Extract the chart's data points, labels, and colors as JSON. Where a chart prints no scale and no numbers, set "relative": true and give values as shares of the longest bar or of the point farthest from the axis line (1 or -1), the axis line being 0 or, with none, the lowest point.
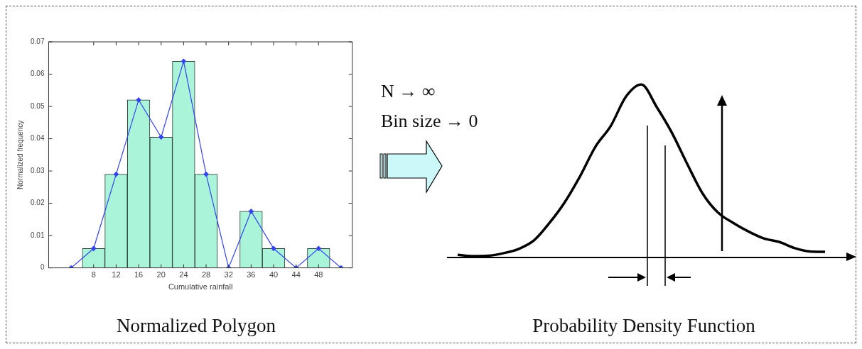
{
  "chart_data": [
    {
      "type": "histogram",
      "title": "Normalized Polygon",
      "xlabel": "Cumulative rainfall",
      "ylabel": "Normalized frequency",
      "xlim": [
        0,
        54
      ],
      "xticks": [
        8,
        12,
        16,
        20,
        24,
        28,
        32,
        36,
        40,
        44,
        48
      ],
      "ylim": [
        0,
        0.07
      ],
      "yticks": [
        0,
        0.01,
        0.02,
        0.03,
        0.04,
        0.05,
        0.06,
        0.07
      ],
      "grid": false,
      "legend": false,
      "series": [
        {
          "type": "histogram",
          "color": "#aaf5da",
          "bins": [
            6,
            10,
            14,
            18,
            22,
            26,
            30,
            34,
            38,
            42,
            46,
            50
          ],
          "values": [
            0.006,
            0.029,
            0.052,
            0.0405,
            0.064,
            0.029,
            0,
            0.0175,
            0.006,
            0,
            0.006
          ]
        },
        {
          "type": "line",
          "color": "#3344ee",
          "marker": "diamond",
          "x": [
            4,
            8,
            12,
            16,
            20,
            24,
            28,
            32,
            36,
            40,
            44,
            48,
            52
          ],
          "values": [
            0,
            0.006,
            0.029,
            0.052,
            0.0405,
            0.064,
            0.029,
            0,
            0.0175,
            0.006,
            0,
            0.006,
            0
          ]
        }
      ]
    },
    {
      "type": "line",
      "title": "Probability Density Function",
      "relative": true,
      "color": "#000000",
      "legend": false,
      "marker": "none",
      "annotations": [
        "N → ∞",
        "Bin size → 0"
      ],
      "categories": [
        null,
        null,
        null,
        null,
        null,
        null,
        null,
        null,
        null,
        null,
        null,
        null,
        null,
        null,
        null,
        null,
        null,
        null,
        null,
        null,
        null,
        null,
        null,
        null,
        null
      ],
      "values": [
        0.015,
        0.008,
        0.01,
        0.025,
        0.05,
        0.1,
        0.2,
        0.32,
        0.47,
        0.64,
        0.76,
        0.93,
        1,
        0.87,
        0.72,
        0.54,
        0.37,
        0.26,
        0.2,
        0.15,
        0.11,
        0.09,
        0.055,
        0.035,
        0.033
      ]
    }
  ]
}
